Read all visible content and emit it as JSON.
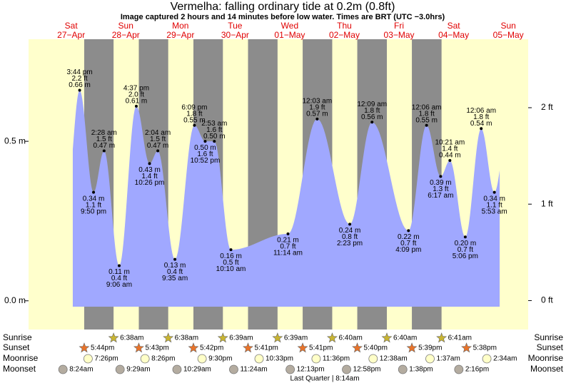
{
  "chart_data": {
    "type": "tide",
    "title": "Vermelha: falling  ordinary tide at 0.2m (0.8ft)",
    "subtitle": "Image captured 2 hours and 14 minutes before low water. Times are BRT (UTC −3.0hrs)",
    "ylim": [
      -0.09,
      0.82
    ],
    "yticks": [
      {
        "value": 0,
        "label": "0.0 m"
      },
      {
        "value": 0.5,
        "label": "0.5 m"
      }
    ],
    "y2lim": [
      -0.3,
      2.71
    ],
    "y2ticks": [
      {
        "value": 0,
        "label": "0 ft"
      },
      {
        "value": 1,
        "label": "1 ft"
      },
      {
        "value": 2,
        "label": "2 ft"
      }
    ],
    "color": "#a0a8ff",
    "row_labels": {
      "sunrise": "Sunrise",
      "sunset": "Sunset",
      "moonrise": "Moonrise",
      "moonset": "Moonset"
    },
    "moon_phase": "Last Quarter | 8:14am",
    "days": [
      {
        "weekday": "Sat",
        "date": "27−Apr",
        "sunrise": null,
        "sunset": "5:44pm",
        "moonrise": "7:26pm",
        "moonset": "8:24am",
        "tides": [
          {
            "time": "3:44 pm",
            "value": 0.66,
            "value_label": "0.66 m",
            "ft": "2.2 ft"
          },
          {
            "time": "9:50 pm",
            "value": 0.34,
            "value_label": "0.34 m",
            "ft": "1.1 ft"
          }
        ]
      },
      {
        "weekday": "Sun",
        "date": "28−Apr",
        "sunrise": "6:38am",
        "sunset": "5:43pm",
        "moonrise": "8:26pm",
        "moonset": "9:29am",
        "tides": [
          {
            "time": "2:28 am",
            "value": 0.47,
            "value_label": "0.47 m",
            "ft": "1.5 ft"
          },
          {
            "time": "9:06 am",
            "value": 0.11,
            "value_label": "0.11 m",
            "ft": "0.4 ft"
          },
          {
            "time": "4:37 pm",
            "value": 0.61,
            "value_label": "0.61 m",
            "ft": "2.0 ft"
          },
          {
            "time": "10:26 pm",
            "value": 0.43,
            "value_label": "0.43 m",
            "ft": "1.4 ft"
          }
        ]
      },
      {
        "weekday": "Mon",
        "date": "29−Apr",
        "sunrise": "6:38am",
        "sunset": "5:42pm",
        "moonrise": "9:30pm",
        "moonset": "10:29am",
        "tides": [
          {
            "time": "2:04 am",
            "value": 0.47,
            "value_label": "0.47 m",
            "ft": "1.5 ft"
          },
          {
            "time": "9:35 am",
            "value": 0.13,
            "value_label": "0.13 m",
            "ft": "0.4 ft"
          },
          {
            "time": "6:09 pm",
            "value": 0.55,
            "value_label": "0.55 m",
            "ft": "1.8 ft"
          },
          {
            "time": "10:52 pm",
            "value": 0.5,
            "value_label": "0.50 m",
            "ft": "1.6 ft"
          }
        ]
      },
      {
        "weekday": "Tue",
        "date": "30−Apr",
        "sunrise": "6:39am",
        "sunset": "5:41pm",
        "moonrise": "10:33pm",
        "moonset": "11:24am",
        "tides": [
          {
            "time": "2:53 am",
            "value": 0.5,
            "value_label": "0.50 m",
            "ft": "1.6 ft"
          },
          {
            "time": "10:10 am",
            "value": 0.16,
            "value_label": "0.16 m",
            "ft": "0.5 ft"
          }
        ]
      },
      {
        "weekday": "Wed",
        "date": "01−May",
        "sunrise": "6:39am",
        "sunset": "5:41pm",
        "moonrise": "11:36pm",
        "moonset": "12:13pm",
        "tides": [
          {
            "time": "11:14 am",
            "value": 0.21,
            "value_label": "0.21 m",
            "ft": "0.7 ft"
          }
        ]
      },
      {
        "weekday": "Thu",
        "date": "02−May",
        "sunrise": "6:40am",
        "sunset": "5:40pm",
        "moonrise": null,
        "moonset": "12:58pm",
        "tides": [
          {
            "time": "12:03 am",
            "value": 0.57,
            "value_label": "0.57 m",
            "ft": "1.9 ft"
          },
          {
            "time": "2:23 pm",
            "value": 0.24,
            "value_label": "0.24 m",
            "ft": "0.8 ft"
          }
        ]
      },
      {
        "weekday": "Fri",
        "date": "03−May",
        "sunrise": "6:40am",
        "sunset": "5:39pm",
        "moonrise": "12:38am",
        "moonset": "1:38pm",
        "tides": [
          {
            "time": "12:09 am",
            "value": 0.56,
            "value_label": "0.56 m",
            "ft": "1.8 ft"
          },
          {
            "time": "4:09 pm",
            "value": 0.22,
            "value_label": "0.22 m",
            "ft": "0.7 ft"
          }
        ]
      },
      {
        "weekday": "Sat",
        "date": "04−May",
        "sunrise": "6:41am",
        "sunset": "5:38pm",
        "moonrise": "1:37am",
        "moonset": "2:16pm",
        "tides": [
          {
            "time": "12:06 am",
            "value": 0.55,
            "value_label": "0.55 m",
            "ft": "1.8 ft"
          },
          {
            "time": "6:17 am",
            "value": 0.39,
            "value_label": "0.39 m",
            "ft": "1.3 ft"
          },
          {
            "time": "10:21 am",
            "value": 0.44,
            "value_label": "0.44 m",
            "ft": "1.4 ft"
          },
          {
            "time": "5:06 pm",
            "value": 0.2,
            "value_label": "0.20 m",
            "ft": "0.7 ft"
          }
        ]
      },
      {
        "weekday": "Sun",
        "date": "05−May",
        "sunrise": null,
        "sunset": null,
        "moonrise": "2:34am",
        "moonset": null,
        "tides": [
          {
            "time": "12:06 am",
            "value": 0.54,
            "value_label": "0.54 m",
            "ft": "1.8 ft"
          },
          {
            "time": "5:53 am",
            "value": 0.34,
            "value_label": "0.34 m",
            "ft": "1.1 ft"
          }
        ]
      }
    ]
  }
}
